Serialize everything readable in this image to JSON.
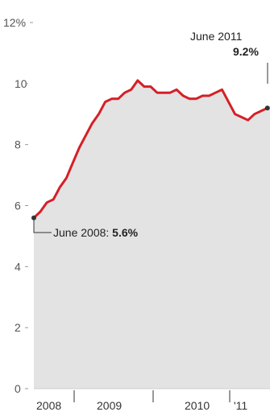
{
  "chart_data": {
    "type": "area",
    "y_axis_unit": "%",
    "ylim": [
      0,
      12
    ],
    "y_ticks": [
      "12%",
      "10",
      "8",
      "6",
      "4",
      "2",
      "0"
    ],
    "x_labels": [
      "2008",
      "2009",
      "2010",
      "'11"
    ],
    "grid": false,
    "colors": {
      "line": "#d42026",
      "area": "#e3e3e3",
      "marker": "#333333"
    },
    "series": [
      {
        "values": [
          {
            "x": "2008-06",
            "y": 5.6
          },
          {
            "x": "2008-07",
            "y": 5.8
          },
          {
            "x": "2008-08",
            "y": 6.1
          },
          {
            "x": "2008-09",
            "y": 6.2
          },
          {
            "x": "2008-10",
            "y": 6.6
          },
          {
            "x": "2008-11",
            "y": 6.9
          },
          {
            "x": "2008-12",
            "y": 7.4
          },
          {
            "x": "2009-01",
            "y": 7.9
          },
          {
            "x": "2009-02",
            "y": 8.3
          },
          {
            "x": "2009-03",
            "y": 8.7
          },
          {
            "x": "2009-04",
            "y": 9.0
          },
          {
            "x": "2009-05",
            "y": 9.4
          },
          {
            "x": "2009-06",
            "y": 9.5
          },
          {
            "x": "2009-07",
            "y": 9.5
          },
          {
            "x": "2009-08",
            "y": 9.7
          },
          {
            "x": "2009-09",
            "y": 9.8
          },
          {
            "x": "2009-10",
            "y": 10.1
          },
          {
            "x": "2009-11",
            "y": 9.9
          },
          {
            "x": "2009-12",
            "y": 9.9
          },
          {
            "x": "2010-01",
            "y": 9.7
          },
          {
            "x": "2010-02",
            "y": 9.7
          },
          {
            "x": "2010-03",
            "y": 9.7
          },
          {
            "x": "2010-04",
            "y": 9.8
          },
          {
            "x": "2010-05",
            "y": 9.6
          },
          {
            "x": "2010-06",
            "y": 9.5
          },
          {
            "x": "2010-07",
            "y": 9.5
          },
          {
            "x": "2010-08",
            "y": 9.6
          },
          {
            "x": "2010-09",
            "y": 9.6
          },
          {
            "x": "2010-10",
            "y": 9.7
          },
          {
            "x": "2010-11",
            "y": 9.8
          },
          {
            "x": "2010-12",
            "y": 9.4
          },
          {
            "x": "2011-01",
            "y": 9.0
          },
          {
            "x": "2011-02",
            "y": 8.9
          },
          {
            "x": "2011-03",
            "y": 8.8
          },
          {
            "x": "2011-04",
            "y": 9.0
          },
          {
            "x": "2011-05",
            "y": 9.1
          },
          {
            "x": "2011-06",
            "y": 9.2
          }
        ]
      }
    ],
    "annotations": [
      {
        "point": "2008-06",
        "label": "June 2008: ",
        "value": "5.6%"
      },
      {
        "point": "2011-06",
        "label": "June 2011",
        "value": "9.2%"
      }
    ]
  }
}
